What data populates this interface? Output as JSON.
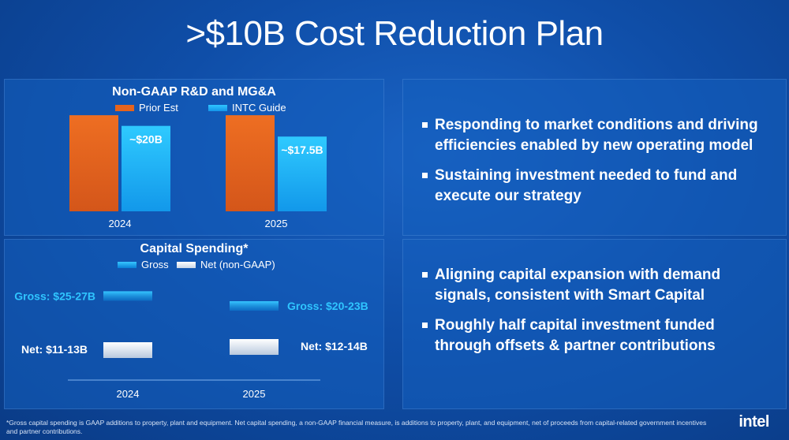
{
  "title": ">$10B Cost Reduction Plan",
  "rd_chart": {
    "chart_data": {
      "type": "bar",
      "title": "Non-GAAP R&D and MG&A",
      "categories": [
        "2024",
        "2025"
      ],
      "series": [
        {
          "name": "Prior Est",
          "values": [
            22.5,
            22.5
          ],
          "color": "#e6641c"
        },
        {
          "name": "INTC Guide",
          "values": [
            20,
            17.5
          ],
          "color": "#1ab0f5"
        }
      ],
      "data_labels": [
        "~$20B",
        "~$17.5B"
      ],
      "ylim": [
        0,
        24
      ]
    }
  },
  "capex_chart": {
    "chart_data": {
      "type": "bar",
      "title": "Capital Spending*",
      "categories": [
        "2024",
        "2025"
      ],
      "series": [
        {
          "name": "Gross",
          "values": [
            26,
            21.5
          ],
          "color": "#1ab0f5"
        },
        {
          "name": "Net (non-GAAP)",
          "values": [
            12,
            13
          ],
          "color": "#ffffff"
        }
      ],
      "data_labels": {
        "gross": [
          "Gross: $25-27B",
          "Gross: $20-23B"
        ],
        "net": [
          "Net: $11-13B",
          "Net: $12-14B"
        ]
      }
    }
  },
  "bullets_top": [
    "Responding to market conditions and driving efficiencies enabled by new operating model",
    "Sustaining investment needed to fund and execute our strategy"
  ],
  "bullets_bottom": [
    "Aligning capital expansion with demand signals, consistent with Smart Capital",
    "Roughly half capital investment funded through offsets & partner contributions"
  ],
  "footnote": "*Gross capital spending is GAAP additions to property, plant and equipment. Net capital spending, a non-GAAP financial measure, is additions to property, plant, and equipment, net of proceeds from capital-related government incentives and partner contributions.",
  "brand": "intel"
}
